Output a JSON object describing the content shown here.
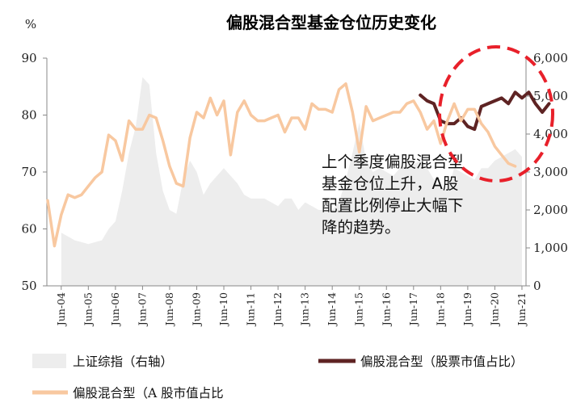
{
  "chart_data": {
    "type": "line",
    "title": "偏股混合型基金仓位历史变化",
    "left_axis_unit": "%",
    "left_axis": {
      "min": 50,
      "max": 90,
      "ticks": [
        "50",
        "60",
        "70",
        "80",
        "90"
      ]
    },
    "right_axis": {
      "min": 0,
      "max": 6000,
      "ticks": [
        "0",
        "1,000",
        "2,000",
        "3,000",
        "4,000",
        "5,000",
        "6,000"
      ]
    },
    "x_tick_labels": [
      "Jun-04",
      "Jun-05",
      "Jun-06",
      "Jun-07",
      "Jun-08",
      "Jun-09",
      "Jun-10",
      "Jun-11",
      "Jun-12",
      "Jun-13",
      "Jun-14",
      "Jun-15",
      "Jun-16",
      "Jun-17",
      "Jun-18",
      "Jun-19",
      "Jun-20",
      "Jun-21"
    ],
    "x_start": 2004.5,
    "x_end": 2021.5,
    "quarter_step": 0.25,
    "series": [
      {
        "name": "上证综指（右轴）",
        "axis": "right",
        "kind": "area",
        "color": "#ededed",
        "x_start": 2004.5,
        "values": [
          1400,
          1300,
          1200,
          1150,
          1100,
          1150,
          1200,
          1500,
          1700,
          2500,
          3500,
          4200,
          5500,
          5300,
          3500,
          2500,
          2000,
          1900,
          2800,
          3300,
          3000,
          2400,
          2700,
          2900,
          3100,
          2900,
          2700,
          2400,
          2300,
          2300,
          2300,
          2200,
          2100,
          2300,
          2300,
          2000,
          2200,
          2100,
          2000,
          2000,
          2000,
          2200,
          2800,
          3500,
          4300,
          3300,
          3000,
          3100,
          3000,
          2900,
          3100,
          3200,
          3200,
          3300,
          3100,
          2800,
          2600,
          2500,
          3100,
          3000,
          2900,
          2800,
          3100,
          3100,
          3300,
          3400,
          3500,
          3600,
          3400
        ]
      },
      {
        "name": "偏股混合型（股票市值占比）",
        "axis": "left",
        "kind": "line",
        "color": "#5e2323",
        "x_start": 2017.75,
        "values": [
          83.5,
          82.5,
          82.0,
          79.0,
          78.5,
          78.5,
          79.5,
          78.0,
          77.5,
          81.5,
          82.0,
          82.5,
          83.0,
          82.0,
          84.0,
          83.0,
          84.0,
          82.0,
          80.5,
          82.0
        ]
      },
      {
        "name": "偏股混合型（A 股市值占比",
        "axis": "left",
        "kind": "line",
        "color": "#f8c8a0",
        "x_start": 2004.0,
        "values": [
          65.0,
          57.0,
          62.5,
          66.0,
          65.5,
          66.0,
          67.5,
          69.0,
          70.0,
          76.5,
          75.5,
          72.0,
          79.0,
          77.5,
          77.5,
          80.0,
          79.5,
          75.5,
          71.0,
          68.0,
          67.5,
          76.0,
          80.5,
          79.5,
          83.0,
          80.0,
          82.5,
          73.0,
          80.5,
          82.5,
          80.0,
          79.0,
          79.0,
          79.5,
          80.0,
          77.0,
          79.5,
          79.5,
          77.5,
          82.0,
          81.0,
          81.0,
          80.5,
          84.5,
          85.5,
          80.5,
          73.5,
          81.5,
          79.0,
          79.5,
          80.0,
          80.5,
          80.5,
          82.0,
          82.5,
          80.5,
          77.5,
          79.0,
          75.0,
          79.0,
          82.0,
          79.0,
          81.0,
          81.0,
          78.5,
          77.0,
          74.5,
          73.0,
          71.5,
          71.0
        ]
      }
    ],
    "legend": [
      {
        "label": "上证综指（右轴）",
        "color": "#ededed",
        "kind": "box"
      },
      {
        "label": "偏股混合型（股票市值占比）",
        "color": "#5e2323",
        "kind": "line"
      },
      {
        "label": "偏股混合型（A 股市值占比",
        "color": "#f8c8a0",
        "kind": "line"
      }
    ],
    "annotation": {
      "lines": [
        "上个季度偏股混合型",
        "基金仓位上升，A股",
        "配置比例停止大幅下",
        "降的趋势。"
      ],
      "highlight": "dashed red ellipse around recent quarters",
      "highlight_color": "#e8202a"
    }
  }
}
